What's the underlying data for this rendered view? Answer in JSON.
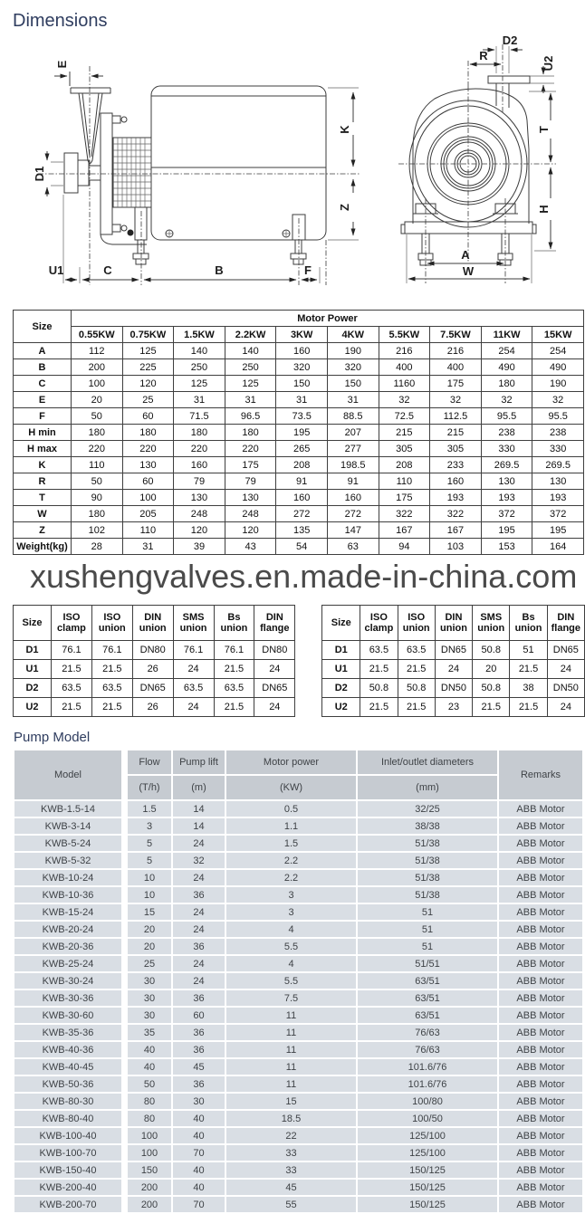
{
  "page": {
    "title": "Dimensions",
    "pump_model_title": "Pump Model",
    "watermark": "xushengvalves.en.made-in-china.com"
  },
  "colors": {
    "heading_text": "#2f3d5f",
    "watermark_text": "#4a4a4a",
    "drawing_line": "#3c3c3c",
    "pump_table_header_bg": "#c6cbd1",
    "pump_table_row_bg": "#d9dee4"
  },
  "drawing": {
    "labels": {
      "e": "E",
      "d1": "D1",
      "u1": "U1",
      "c": "C",
      "b": "B",
      "f": "F",
      "k": "K",
      "z": "Z",
      "d2": "D2",
      "r": "R",
      "u2": "U2",
      "t": "T",
      "h": "H",
      "a": "A",
      "w": "W"
    }
  },
  "motor_table": {
    "label_col": true,
    "header": [
      [
        {
          "t": "Size",
          "rs": 2
        },
        {
          "t": "Motor Power",
          "cs": 10
        }
      ],
      [
        {
          "t": "0.55KW"
        },
        {
          "t": "0.75KW"
        },
        {
          "t": "1.5KW"
        },
        {
          "t": "2.2KW"
        },
        {
          "t": "3KW"
        },
        {
          "t": "4KW"
        },
        {
          "t": "5.5KW"
        },
        {
          "t": "7.5KW"
        },
        {
          "t": "11KW"
        },
        {
          "t": "15KW"
        }
      ]
    ],
    "rows": [
      [
        "A",
        "112",
        "125",
        "140",
        "140",
        "160",
        "190",
        "216",
        "216",
        "254",
        "254"
      ],
      [
        "B",
        "200",
        "225",
        "250",
        "250",
        "320",
        "320",
        "400",
        "400",
        "490",
        "490"
      ],
      [
        "C",
        "100",
        "120",
        "125",
        "125",
        "150",
        "150",
        "1160",
        "175",
        "180",
        "190"
      ],
      [
        "E",
        "20",
        "25",
        "31",
        "31",
        "31",
        "31",
        "32",
        "32",
        "32",
        "32"
      ],
      [
        "F",
        "50",
        "60",
        "71.5",
        "96.5",
        "73.5",
        "88.5",
        "72.5",
        "112.5",
        "95.5",
        "95.5"
      ],
      [
        "H min",
        "180",
        "180",
        "180",
        "180",
        "195",
        "207",
        "215",
        "215",
        "238",
        "238"
      ],
      [
        "H max",
        "220",
        "220",
        "220",
        "220",
        "265",
        "277",
        "305",
        "305",
        "330",
        "330"
      ],
      [
        "K",
        "110",
        "130",
        "160",
        "175",
        "208",
        "198.5",
        "208",
        "233",
        "269.5",
        "269.5"
      ],
      [
        "R",
        "50",
        "60",
        "79",
        "79",
        "91",
        "91",
        "110",
        "160",
        "130",
        "130"
      ],
      [
        "T",
        "90",
        "100",
        "130",
        "130",
        "160",
        "160",
        "175",
        "193",
        "193",
        "193"
      ],
      [
        "W",
        "180",
        "205",
        "248",
        "248",
        "272",
        "272",
        "322",
        "322",
        "372",
        "372"
      ],
      [
        "Z",
        "102",
        "110",
        "120",
        "120",
        "135",
        "147",
        "167",
        "167",
        "195",
        "195"
      ],
      [
        "Weight(kg)",
        "28",
        "31",
        "39",
        "43",
        "54",
        "63",
        "94",
        "103",
        "153",
        "164"
      ]
    ]
  },
  "fitting_table_left": {
    "label_col": true,
    "header": [
      [
        {
          "t": "Size"
        },
        {
          "t": "ISO clamp"
        },
        {
          "t": "ISO union"
        },
        {
          "t": "DIN union"
        },
        {
          "t": "SMS union"
        },
        {
          "t": "Bs union"
        },
        {
          "t": "DIN flange"
        }
      ]
    ],
    "rows": [
      [
        "D1",
        "76.1",
        "76.1",
        "DN80",
        "76.1",
        "76.1",
        "DN80"
      ],
      [
        "U1",
        "21.5",
        "21.5",
        "26",
        "24",
        "21.5",
        "24"
      ],
      [
        "D2",
        "63.5",
        "63.5",
        "DN65",
        "63.5",
        "63.5",
        "DN65"
      ],
      [
        "U2",
        "21.5",
        "21.5",
        "26",
        "24",
        "21.5",
        "24"
      ]
    ]
  },
  "fitting_table_right": {
    "label_col": true,
    "header": [
      [
        {
          "t": "Size"
        },
        {
          "t": "ISO clamp"
        },
        {
          "t": "ISO union"
        },
        {
          "t": "DIN union"
        },
        {
          "t": "SMS union"
        },
        {
          "t": "Bs union"
        },
        {
          "t": "DIN flange"
        }
      ]
    ],
    "rows": [
      [
        "D1",
        "63.5",
        "63.5",
        "DN65",
        "50.8",
        "51",
        "DN65"
      ],
      [
        "U1",
        "21.5",
        "21.5",
        "24",
        "20",
        "21.5",
        "24"
      ],
      [
        "D2",
        "50.8",
        "50.8",
        "DN50",
        "50.8",
        "38",
        "DN50"
      ],
      [
        "U2",
        "21.5",
        "21.5",
        "23",
        "21.5",
        "21.5",
        "24"
      ]
    ]
  },
  "pump_table": {
    "label_col": false,
    "header": [
      [
        {
          "t": "Model",
          "rs": 2
        },
        {
          "t": "Flow"
        },
        {
          "t": "Pump lift"
        },
        {
          "t": "Motor power"
        },
        {
          "t": "Inlet/outlet diameters"
        },
        {
          "t": "Remarks",
          "rs": 2
        }
      ],
      [
        {
          "t": "(T/h)"
        },
        {
          "t": "(m)"
        },
        {
          "t": "(KW)"
        },
        {
          "t": "(mm)"
        }
      ]
    ],
    "rows": [
      [
        "KWB-1.5-14",
        "1.5",
        "14",
        "0.5",
        "32/25",
        "ABB Motor"
      ],
      [
        "KWB-3-14",
        "3",
        "14",
        "1.1",
        "38/38",
        "ABB Motor"
      ],
      [
        "KWB-5-24",
        "5",
        "24",
        "1.5",
        "51/38",
        "ABB Motor"
      ],
      [
        "KWB-5-32",
        "5",
        "32",
        "2.2",
        "51/38",
        "ABB Motor"
      ],
      [
        "KWB-10-24",
        "10",
        "24",
        "2.2",
        "51/38",
        "ABB Motor"
      ],
      [
        "KWB-10-36",
        "10",
        "36",
        "3",
        "51/38",
        "ABB Motor"
      ],
      [
        "KWB-15-24",
        "15",
        "24",
        "3",
        "51",
        "ABB Motor"
      ],
      [
        "KWB-20-24",
        "20",
        "24",
        "4",
        "51",
        "ABB Motor"
      ],
      [
        "KWB-20-36",
        "20",
        "36",
        "5.5",
        "51",
        "ABB Motor"
      ],
      [
        "KWB-25-24",
        "25",
        "24",
        "4",
        "51/51",
        "ABB Motor"
      ],
      [
        "KWB-30-24",
        "30",
        "24",
        "5.5",
        "63/51",
        "ABB Motor"
      ],
      [
        "KWB-30-36",
        "30",
        "36",
        "7.5",
        "63/51",
        "ABB Motor"
      ],
      [
        "KWB-30-60",
        "30",
        "60",
        "11",
        "63/51",
        "ABB Motor"
      ],
      [
        "KWB-35-36",
        "35",
        "36",
        "11",
        "76/63",
        "ABB Motor"
      ],
      [
        "KWB-40-36",
        "40",
        "36",
        "11",
        "76/63",
        "ABB Motor"
      ],
      [
        "KWB-40-45",
        "40",
        "45",
        "11",
        "101.6/76",
        "ABB Motor"
      ],
      [
        "KWB-50-36",
        "50",
        "36",
        "11",
        "101.6/76",
        "ABB Motor"
      ],
      [
        "KWB-80-30",
        "80",
        "30",
        "15",
        "100/80",
        "ABB Motor"
      ],
      [
        "KWB-80-40",
        "80",
        "40",
        "18.5",
        "100/50",
        "ABB Motor"
      ],
      [
        "KWB-100-40",
        "100",
        "40",
        "22",
        "125/100",
        "ABB Motor"
      ],
      [
        "KWB-100-70",
        "100",
        "70",
        "33",
        "125/100",
        "ABB Motor"
      ],
      [
        "KWB-150-40",
        "150",
        "40",
        "33",
        "150/125",
        "ABB Motor"
      ],
      [
        "KWB-200-40",
        "200",
        "40",
        "45",
        "150/125",
        "ABB Motor"
      ],
      [
        "KWB-200-70",
        "200",
        "70",
        "55",
        "150/125",
        "ABB Motor"
      ]
    ]
  }
}
